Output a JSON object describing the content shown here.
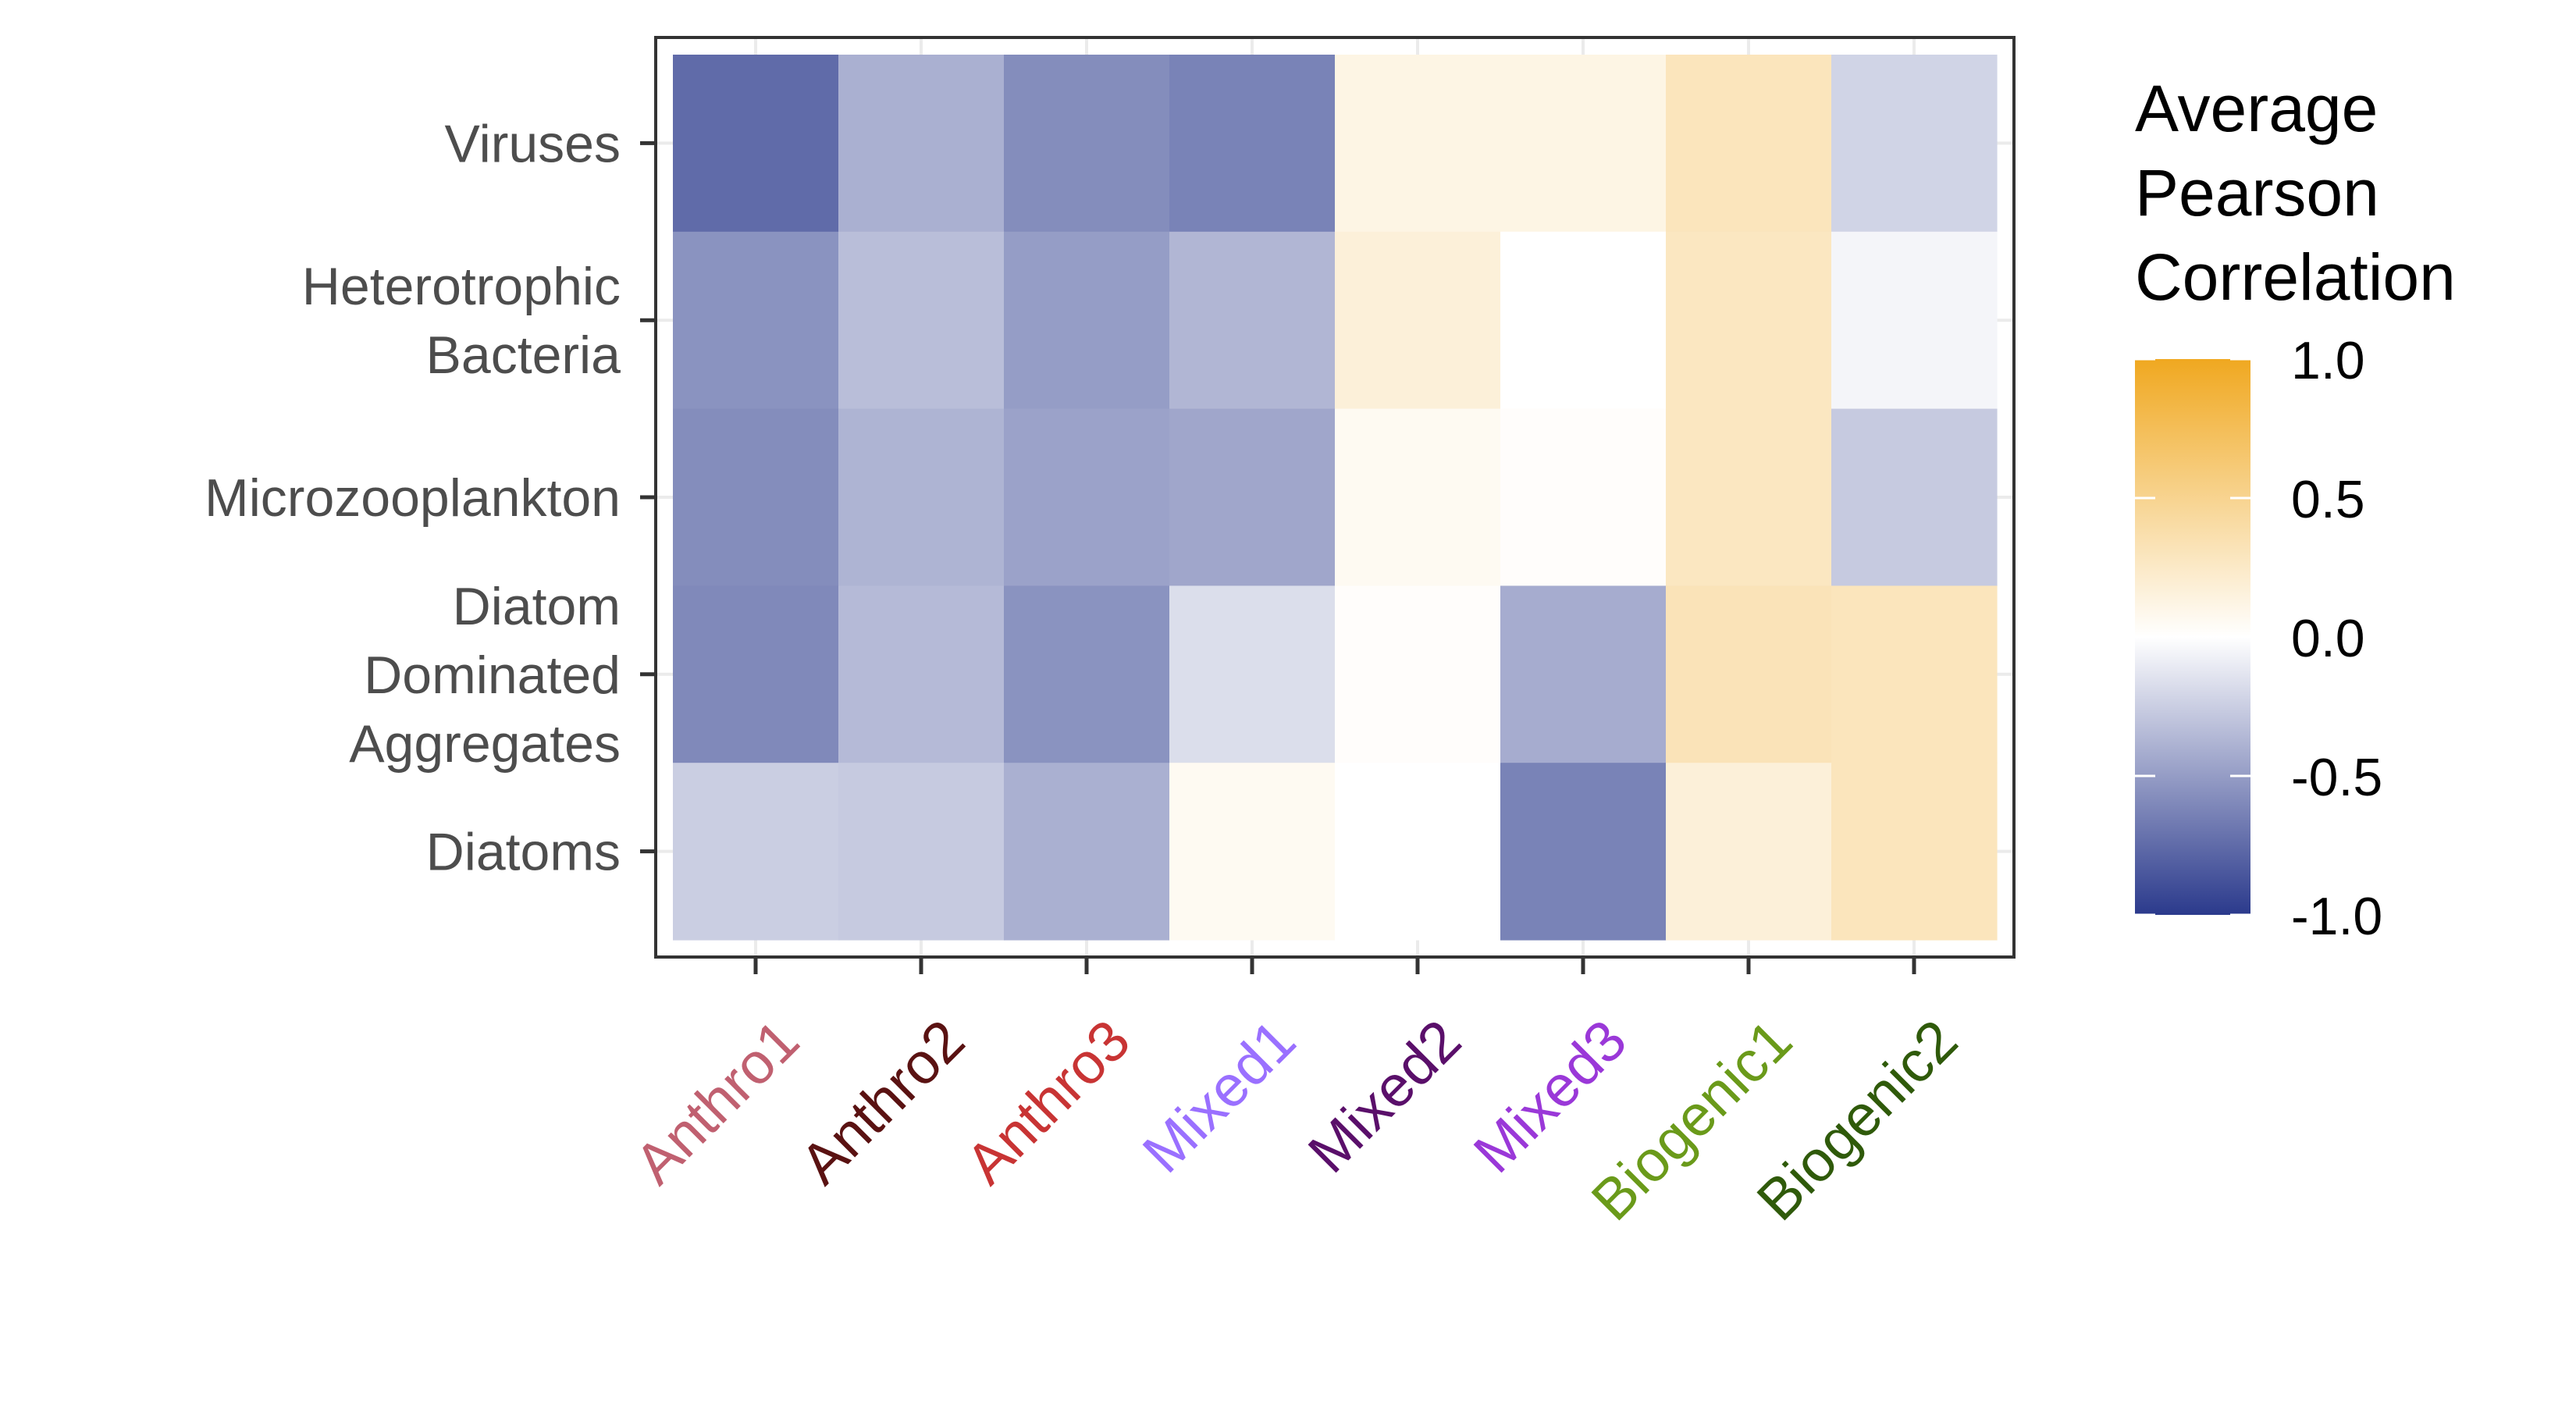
{
  "chart_data": {
    "type": "heatmap",
    "title": "",
    "xlabel": "",
    "ylabel": "",
    "x_categories": [
      {
        "label": "Anthro1",
        "color": "#c06070"
      },
      {
        "label": "Anthro2",
        "color": "#5a1212"
      },
      {
        "label": "Anthro3",
        "color": "#c83434"
      },
      {
        "label": "Mixed1",
        "color": "#9a70ff"
      },
      {
        "label": "Mixed2",
        "color": "#5a0f6a"
      },
      {
        "label": "Mixed3",
        "color": "#9a38d8"
      },
      {
        "label": "Biogenic1",
        "color": "#6a9a1a"
      },
      {
        "label": "Biogenic2",
        "color": "#2f5a0a"
      }
    ],
    "y_categories": [
      {
        "lines": [
          "Viruses"
        ]
      },
      {
        "lines": [
          "Heterotrophic",
          "Bacteria"
        ]
      },
      {
        "lines": [
          "Microzooplankton"
        ]
      },
      {
        "lines": [
          "Diatom",
          "Dominated",
          "Aggregates"
        ]
      },
      {
        "lines": [
          "Diatoms"
        ]
      }
    ],
    "values": [
      [
        -0.75,
        -0.4,
        -0.58,
        -0.63,
        0.12,
        0.12,
        0.3,
        -0.22
      ],
      [
        -0.55,
        -0.33,
        -0.5,
        -0.37,
        0.17,
        0.0,
        0.28,
        -0.05
      ],
      [
        -0.58,
        -0.38,
        -0.47,
        -0.45,
        0.06,
        0.02,
        0.28,
        -0.27
      ],
      [
        -0.6,
        -0.35,
        -0.55,
        -0.17,
        0.02,
        -0.42,
        0.32,
        0.3
      ],
      [
        -0.25,
        -0.27,
        -0.4,
        0.06,
        0.0,
        -0.63,
        0.17,
        0.3
      ]
    ],
    "color_scale": {
      "min": -1.0,
      "max": 1.0,
      "low_color": "#2b3a8c",
      "mid_color": "#ffffff",
      "high_color": "#f0a820"
    },
    "legend": {
      "title_lines": [
        "Average",
        "Pearson",
        "Correlation"
      ],
      "ticks": [
        "1.0",
        "0.5",
        "0.0",
        "-0.5",
        "-1.0"
      ],
      "tick_values": [
        1.0,
        0.5,
        0.0,
        -0.5,
        -1.0
      ],
      "placement": "right"
    },
    "grid": true
  }
}
